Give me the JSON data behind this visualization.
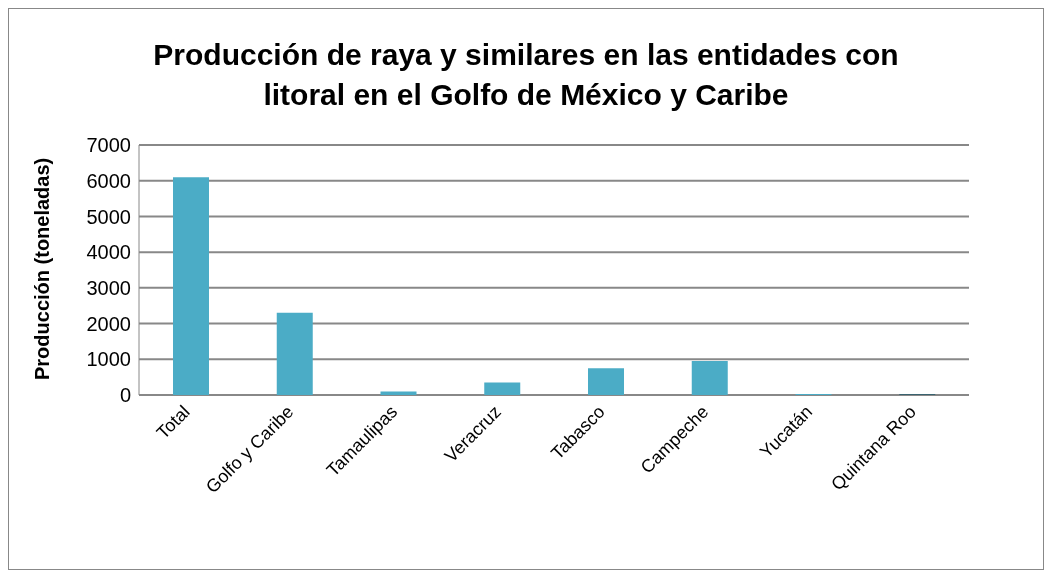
{
  "chart_data": {
    "type": "bar",
    "title": "Producción de raya y similares en las entidades con litoral en el Golfo de México y Caribe",
    "ylabel": "Producción (toneladas)",
    "categories": [
      "Total",
      "Golfo y Caribe",
      "Tamaulipas",
      "Veracruz",
      "Tabasco",
      "Campeche",
      "Yucatán",
      "Quintana Roo"
    ],
    "values": [
      6100,
      2300,
      100,
      350,
      750,
      950,
      30,
      20
    ],
    "colors": [
      "#4bacc6",
      "#4bacc6",
      "#4bacc6",
      "#4bacc6",
      "#4bacc6",
      "#4bacc6",
      "#4bacc6",
      "#215968"
    ],
    "ylim": [
      0,
      7000
    ],
    "yticks": [
      0,
      1000,
      2000,
      3000,
      4000,
      5000,
      6000,
      7000
    ],
    "grid": "y"
  }
}
